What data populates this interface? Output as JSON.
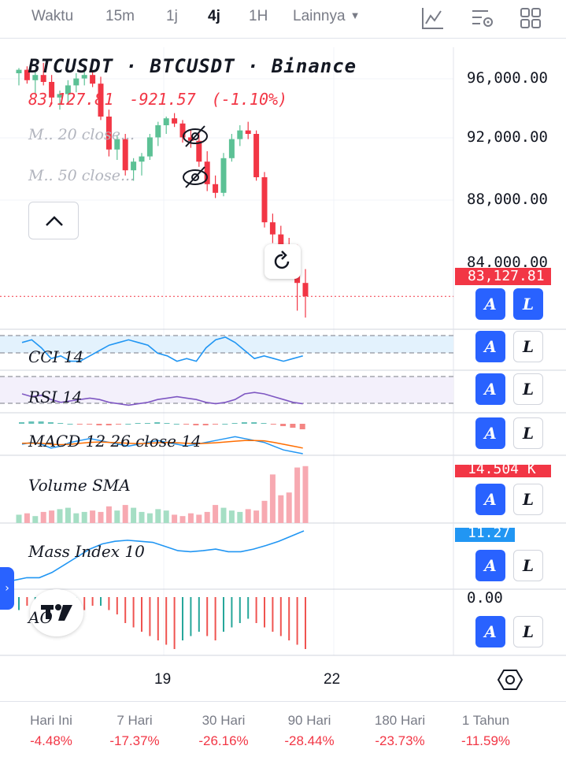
{
  "toolbar": {
    "timeframes": [
      "Waktu",
      "15m",
      "1j",
      "4j",
      "1H",
      "Lainnya"
    ],
    "active": "4j",
    "icons": [
      "indicators-icon",
      "alert-settings-icon",
      "layout-grid-icon"
    ]
  },
  "legend": {
    "title": "BTCUSDT · BTCUSDT · Binance",
    "price": "83,127.81",
    "change": "-921.57",
    "change_pct": "(-1.10%)",
    "ma20": "M.. 20  close...",
    "ma50": "M.. 50  close..."
  },
  "price_axis": {
    "labels": [
      "96,000.00",
      "92,000.00",
      "88,000.00",
      "84,000.00"
    ],
    "current_tag": "83,127.81"
  },
  "panes": {
    "cci": "CCI 14",
    "rsi": "RSI 14",
    "macd": "MACD 12  26  close  14",
    "volume": "Volume SMA",
    "volume_tag": "14.504 K",
    "mass": "Mass  Index 10",
    "mass_tag": "11.27",
    "ao": "AO",
    "ao_zero": "0.00"
  },
  "buttons": {
    "auto": "A",
    "log": "L"
  },
  "dates": [
    "19",
    "22"
  ],
  "performance": [
    {
      "label": "Hari Ini",
      "value": "-4.48%"
    },
    {
      "label": "7 Hari",
      "value": "-17.37%"
    },
    {
      "label": "30 Hari",
      "value": "-26.16%"
    },
    {
      "label": "90 Hari",
      "value": "-28.44%"
    },
    {
      "label": "180 Hari",
      "value": "-23.73%"
    },
    {
      "label": "1 Tahun",
      "value": "-11.59%"
    }
  ],
  "colors": {
    "up": "#5cc195",
    "down": "#f23645",
    "accent": "#2962ff"
  },
  "chart_data": {
    "type": "candlestick",
    "price_range": [
      81500,
      97500
    ],
    "candles": [
      {
        "o": 96000,
        "h": 96300,
        "l": 95300,
        "c": 96200
      },
      {
        "o": 96200,
        "h": 96400,
        "l": 95400,
        "c": 95600
      },
      {
        "o": 95600,
        "h": 96100,
        "l": 94800,
        "c": 95900
      },
      {
        "o": 95900,
        "h": 96600,
        "l": 95300,
        "c": 95500
      },
      {
        "o": 95500,
        "h": 95900,
        "l": 94300,
        "c": 94600
      },
      {
        "o": 94600,
        "h": 95000,
        "l": 93900,
        "c": 94800
      },
      {
        "o": 94800,
        "h": 95600,
        "l": 94200,
        "c": 95300
      },
      {
        "o": 95300,
        "h": 96000,
        "l": 94900,
        "c": 95700
      },
      {
        "o": 95700,
        "h": 96300,
        "l": 95300,
        "c": 95900
      },
      {
        "o": 95900,
        "h": 96100,
        "l": 95200,
        "c": 95400
      },
      {
        "o": 95400,
        "h": 95800,
        "l": 93300,
        "c": 93500
      },
      {
        "o": 93500,
        "h": 93900,
        "l": 91200,
        "c": 91600
      },
      {
        "o": 91600,
        "h": 92400,
        "l": 91000,
        "c": 92200
      },
      {
        "o": 92200,
        "h": 92500,
        "l": 90100,
        "c": 90400
      },
      {
        "o": 90400,
        "h": 91100,
        "l": 89800,
        "c": 90900
      },
      {
        "o": 90900,
        "h": 91400,
        "l": 90100,
        "c": 91200
      },
      {
        "o": 91200,
        "h": 92500,
        "l": 91000,
        "c": 92300
      },
      {
        "o": 92300,
        "h": 93200,
        "l": 91800,
        "c": 93000
      },
      {
        "o": 93000,
        "h": 93500,
        "l": 92500,
        "c": 93400
      },
      {
        "o": 93400,
        "h": 93700,
        "l": 92900,
        "c": 93100
      },
      {
        "o": 93100,
        "h": 93300,
        "l": 92000,
        "c": 92300
      },
      {
        "o": 92300,
        "h": 92700,
        "l": 91700,
        "c": 92100
      },
      {
        "o": 92100,
        "h": 92600,
        "l": 90600,
        "c": 90900
      },
      {
        "o": 90900,
        "h": 91500,
        "l": 89200,
        "c": 89600
      },
      {
        "o": 89600,
        "h": 90100,
        "l": 88800,
        "c": 89100
      },
      {
        "o": 89100,
        "h": 91400,
        "l": 88900,
        "c": 91100
      },
      {
        "o": 91100,
        "h": 92500,
        "l": 90900,
        "c": 92200
      },
      {
        "o": 92200,
        "h": 93000,
        "l": 91800,
        "c": 92700
      },
      {
        "o": 92700,
        "h": 93200,
        "l": 92200,
        "c": 92500
      },
      {
        "o": 92500,
        "h": 92700,
        "l": 89800,
        "c": 90000
      },
      {
        "o": 90000,
        "h": 90300,
        "l": 87100,
        "c": 87400
      },
      {
        "o": 87400,
        "h": 87900,
        "l": 86200,
        "c": 86700
      },
      {
        "o": 86700,
        "h": 87200,
        "l": 85700,
        "c": 86000
      },
      {
        "o": 86000,
        "h": 86500,
        "l": 85100,
        "c": 85600
      },
      {
        "o": 85600,
        "h": 86100,
        "l": 82300,
        "c": 83900
      },
      {
        "o": 83900,
        "h": 84700,
        "l": 81900,
        "c": 83127.81
      }
    ],
    "volume": [
      6,
      7,
      5,
      8,
      9,
      10,
      11,
      7,
      8,
      9,
      8,
      12,
      9,
      13,
      11,
      8,
      7,
      10,
      9,
      6,
      5,
      7,
      6,
      8,
      13,
      11,
      9,
      8,
      10,
      9,
      16,
      35,
      20,
      22,
      40,
      41
    ],
    "ao": [
      3,
      2,
      4,
      5,
      6,
      5,
      3,
      4,
      3,
      2,
      2,
      -3,
      -4,
      -6,
      -7,
      -8,
      -9,
      -10,
      -11,
      -12,
      -10,
      -9,
      -8,
      -9,
      -10,
      -8,
      -7,
      -6,
      -5,
      -6,
      -7,
      -8,
      -9,
      -10,
      -11,
      -12
    ]
  }
}
